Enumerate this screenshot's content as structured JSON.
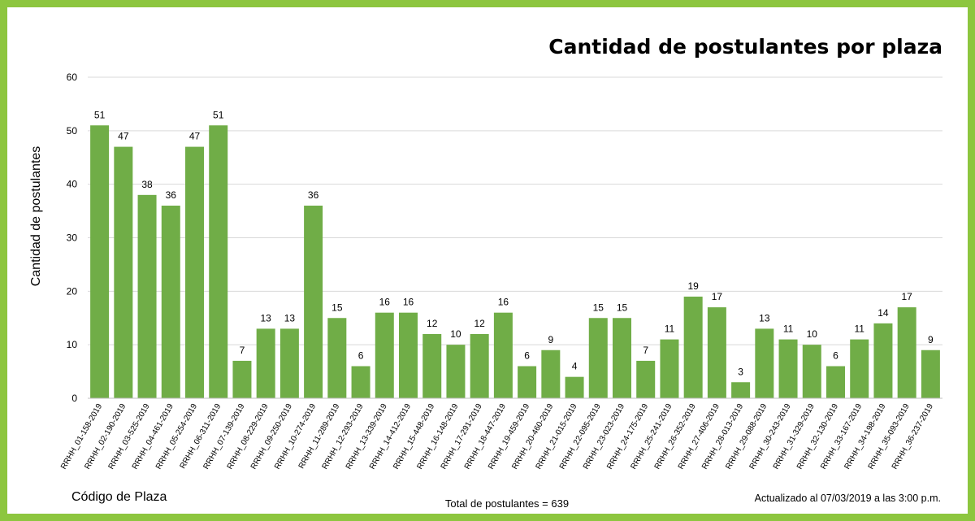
{
  "chart_data": {
    "type": "bar",
    "title": "Cantidad de postulantes por plaza",
    "xlabel": "Código de Plaza",
    "ylabel": "Cantidad de postulantes",
    "ylim": [
      0,
      60
    ],
    "yticks": [
      0,
      10,
      20,
      30,
      40,
      50,
      60
    ],
    "grid": true,
    "bar_color": "#70ad47",
    "categories": [
      "RRHH_01-158-2019",
      "RRHH_02-190-2019",
      "RRHH_03-525-2019",
      "RRHH_04-461-2019",
      "RRHH_05-254-2019",
      "RRHH_06-311-2019",
      "RRHH_07-139-2019",
      "RRHH_08-229-2019",
      "RRHH_09-250-2019",
      "RRHH_10-274-2019",
      "RRHH_11-289-2019",
      "RRHH_12-293-2019",
      "RRHH_13-339-2019",
      "RRHH_14-412-2019",
      "RRHH_15-448-2019",
      "RRHH_16-148-2019",
      "RRHH_17-291-2019",
      "RRHH_18-447-2019",
      "RRHH_19-459-2019",
      "RRHH_20-460-2019",
      "RRHH_21-015-2019",
      "RRHH_22-095-2019",
      "RRHH_23-023-2019",
      "RRHH_24-175-2019",
      "RRHH_25-241-2019",
      "RRHH_26-352-2019",
      "RRHH_27-406-2019",
      "RRHH_28-013-2019",
      "RRHH_29-088-2019",
      "RRHH_30-243-2019",
      "RRHH_31-329-2019",
      "RRHH_32-130-2019",
      "RRHH_33-167-2019",
      "RRHH_34-198-2019",
      "RRHH_35-093-2019",
      "RRHH_36-237-2019"
    ],
    "values": [
      51,
      47,
      38,
      36,
      47,
      51,
      7,
      13,
      13,
      36,
      15,
      6,
      16,
      16,
      12,
      10,
      12,
      16,
      6,
      9,
      4,
      15,
      15,
      7,
      11,
      19,
      17,
      3,
      13,
      11,
      10,
      6,
      11,
      14,
      17,
      9
    ]
  },
  "footer": {
    "total": "Total de postulantes = 639",
    "updated": "Actualizado al 07/03/2019  a las 3:00 p.m."
  }
}
